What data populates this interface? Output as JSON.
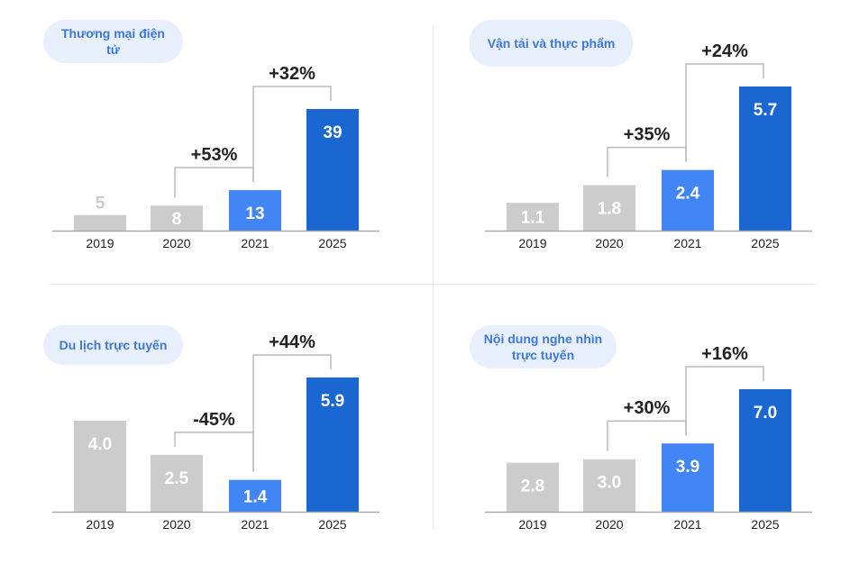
{
  "colors": {
    "grey": "#cccccc",
    "light_blue": "#4285f4",
    "dark_blue": "#1a67d2",
    "pill_bg": "#e8f0fe",
    "pill_text": "#3d78d8"
  },
  "chart_data": [
    {
      "type": "bar",
      "title": "Thương mại điện tử",
      "categories": [
        "2019",
        "2020",
        "2021",
        "2025"
      ],
      "values": [
        5,
        8,
        13,
        39
      ],
      "value_labels": [
        "5",
        "8",
        "13",
        "39"
      ],
      "annotations": [
        {
          "from": "2020",
          "to": "2021",
          "label": "+53%"
        },
        {
          "from": "2021",
          "to": "2025",
          "label": "+32%"
        }
      ],
      "ylim": [
        0,
        39
      ]
    },
    {
      "type": "bar",
      "title": "Vận tải và thực phẩm",
      "categories": [
        "2019",
        "2020",
        "2021",
        "2025"
      ],
      "values": [
        1.1,
        1.8,
        2.4,
        5.7
      ],
      "value_labels": [
        "1.1",
        "1.8",
        "2.4",
        "5.7"
      ],
      "annotations": [
        {
          "from": "2020",
          "to": "2021",
          "label": "+35%"
        },
        {
          "from": "2021",
          "to": "2025",
          "label": "+24%"
        }
      ],
      "ylim": [
        0,
        5.7
      ]
    },
    {
      "type": "bar",
      "title": "Du lịch trực tuyến",
      "categories": [
        "2019",
        "2020",
        "2021",
        "2025"
      ],
      "values": [
        4.0,
        2.5,
        1.4,
        5.9
      ],
      "value_labels": [
        "4.0",
        "2.5",
        "1.4",
        "5.9"
      ],
      "annotations": [
        {
          "from": "2020",
          "to": "2021",
          "label": "-45%"
        },
        {
          "from": "2021",
          "to": "2025",
          "label": "+44%"
        }
      ],
      "ylim": [
        0,
        5.9
      ]
    },
    {
      "type": "bar",
      "title": "Nội dung nghe nhìn trực tuyến",
      "categories": [
        "2019",
        "2020",
        "2021",
        "2025"
      ],
      "values": [
        2.8,
        3.0,
        3.9,
        7.0
      ],
      "value_labels": [
        "2.8",
        "3.0",
        "3.9",
        "7.0"
      ],
      "annotations": [
        {
          "from": "2020",
          "to": "2021",
          "label": "+30%"
        },
        {
          "from": "2021",
          "to": "2025",
          "label": "+16%"
        }
      ],
      "ylim": [
        0,
        7.0
      ]
    }
  ]
}
